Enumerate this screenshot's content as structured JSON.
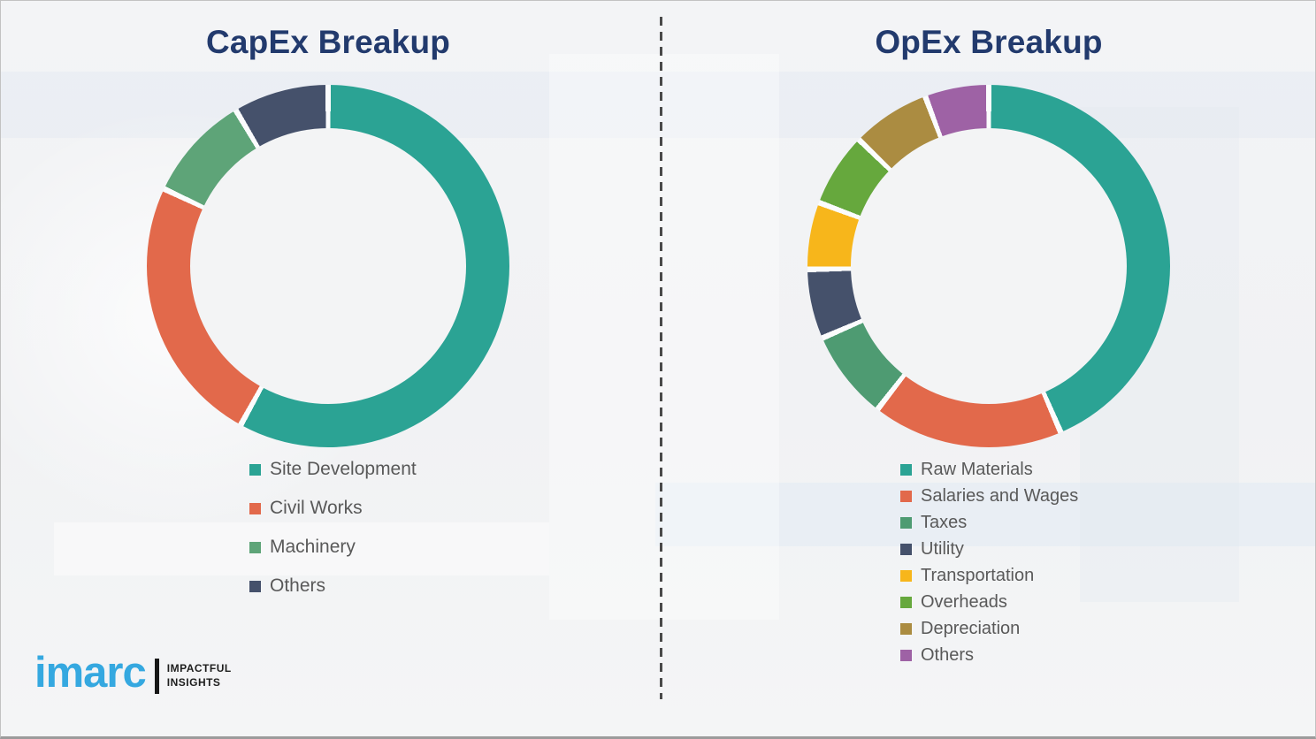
{
  "chart_data": [
    {
      "type": "pie",
      "variant": "donut",
      "title": "CapEx Breakup",
      "categories": [
        "Site Development",
        "Civil Works",
        "Machinery",
        "Others"
      ],
      "values": [
        58,
        24,
        9.5,
        8.5
      ],
      "colors": [
        "#2ba394",
        "#e2694b",
        "#5ea478",
        "#45516b"
      ],
      "start_angle_deg": 0,
      "direction": "clockwise",
      "legend_position": "below-left"
    },
    {
      "type": "pie",
      "variant": "donut",
      "title": "OpEx Breakup",
      "categories": [
        "Raw Materials",
        "Salaries and Wages",
        "Taxes",
        "Utility",
        "Transportation",
        "Overheads",
        "Depreciation",
        "Others"
      ],
      "values": [
        43.5,
        17,
        8,
        6.2,
        6,
        6.6,
        7,
        5.7
      ],
      "colors": [
        "#2ba394",
        "#e2694b",
        "#4e9b72",
        "#45516b",
        "#f7b61b",
        "#66a83d",
        "#ab8c41",
        "#9e62a5"
      ],
      "start_angle_deg": 0,
      "direction": "clockwise",
      "legend_position": "below-left"
    }
  ],
  "logo": {
    "brand": "imarc",
    "tagline_line1": "IMPACTFUL",
    "tagline_line2": "INSIGHTS",
    "brand_color": "#35a8e0"
  },
  "styles": {
    "title_color": "#223a6d",
    "legend_text_color": "#595959",
    "slice_gap_color": "#fbfcfd"
  }
}
